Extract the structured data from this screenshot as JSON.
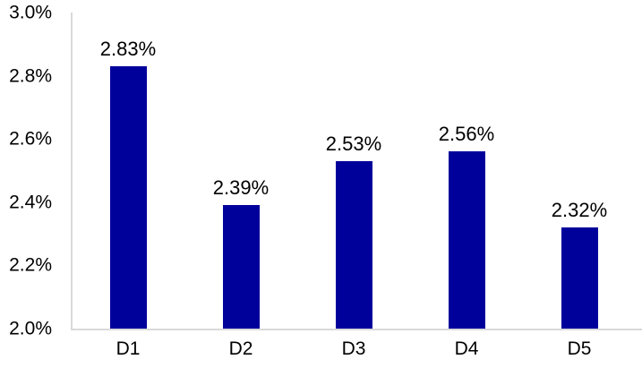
{
  "chart_data": {
    "type": "bar",
    "categories": [
      "D1",
      "D2",
      "D3",
      "D4",
      "D5"
    ],
    "values": [
      2.83,
      2.39,
      2.53,
      2.56,
      2.32
    ],
    "value_labels": [
      "2.83%",
      "2.39%",
      "2.53%",
      "2.56%",
      "2.32%"
    ],
    "title": "",
    "xlabel": "",
    "ylabel": "",
    "ylim": [
      2.0,
      3.0
    ],
    "yticks": [
      3.0,
      2.8,
      2.6,
      2.4,
      2.2,
      2.0
    ],
    "ytick_labels": [
      "3.0%",
      "2.8%",
      "2.6%",
      "2.4%",
      "2.2%",
      "2.0%"
    ],
    "grid": false,
    "legend": false,
    "colors": {
      "bar": "#00009B",
      "axis": "#D9D9D9",
      "text": "#000000",
      "background": "#FFFFFF"
    }
  }
}
